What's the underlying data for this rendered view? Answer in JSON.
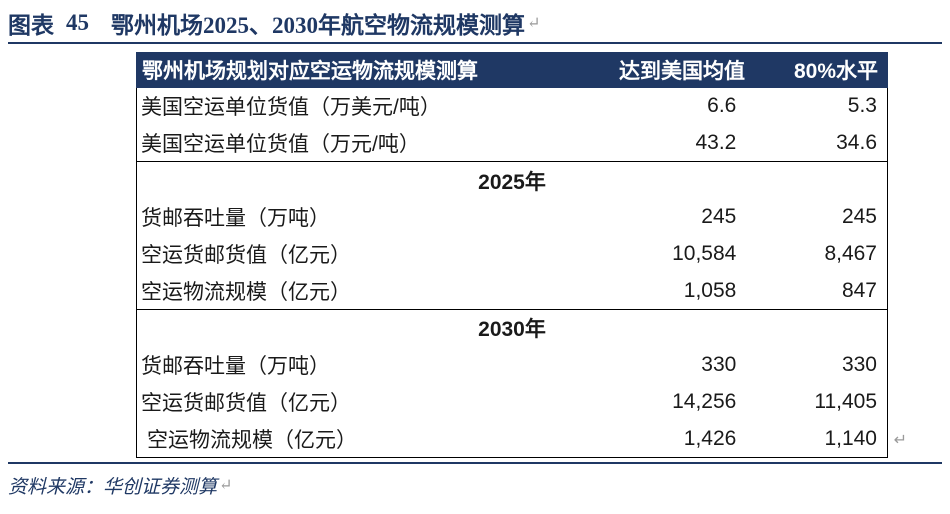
{
  "title": {
    "label": "图表",
    "number": "45",
    "text": "鄂州机场2025、2030年航空物流规模测算"
  },
  "table": {
    "headers": [
      "鄂州机场规划对应空运物流规模测算",
      "达到美国均值",
      "80%水平"
    ],
    "top_rows": [
      [
        "美国空运单位货值（万美元/吨）",
        "6.6",
        "5.3"
      ],
      [
        "美国空运单位货值（万元/吨）",
        "43.2",
        "34.6"
      ]
    ],
    "sections": [
      {
        "year": "2025年",
        "rows": [
          [
            "货邮吞吐量（万吨）",
            "245",
            "245"
          ],
          [
            "空运货邮货值（亿元）",
            "10,584",
            "8,467"
          ],
          [
            "空运物流规模（亿元）",
            "1,058",
            "847"
          ]
        ]
      },
      {
        "year": "2030年",
        "rows": [
          [
            "货邮吞吐量（万吨）",
            "330",
            "330"
          ],
          [
            "空运货邮货值（亿元）",
            "14,256",
            "11,405"
          ],
          [
            "空运物流规模（亿元）",
            "1,426",
            "1,140"
          ]
        ]
      }
    ]
  },
  "source": "资料来源：华创证券测算",
  "paragraph_mark": "↵",
  "colors": {
    "accent": "#1f3864",
    "text": "#1a1a1a",
    "rule": "#000000"
  }
}
